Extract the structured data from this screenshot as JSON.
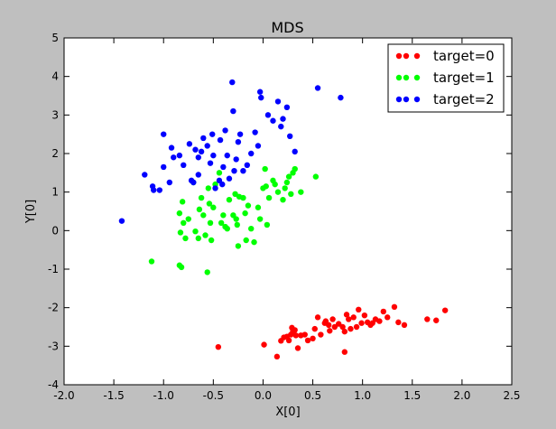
{
  "chart_data": {
    "type": "scatter",
    "title": "MDS",
    "xlabel": "X[0]",
    "ylabel": "Y[0]",
    "xlim": [
      -2.0,
      2.5
    ],
    "ylim": [
      -4,
      5
    ],
    "xticks": [
      "-2.0",
      "-1.5",
      "-1.0",
      "-0.5",
      "0.0",
      "0.5",
      "1.0",
      "1.5",
      "2.0",
      "2.5"
    ],
    "xtick_values": [
      -2.0,
      -1.5,
      -1.0,
      -0.5,
      0.0,
      0.5,
      1.0,
      1.5,
      2.0,
      2.5
    ],
    "yticks": [
      "-4",
      "-3",
      "-2",
      "-1",
      "0",
      "1",
      "2",
      "3",
      "4",
      "5"
    ],
    "ytick_values": [
      -4,
      -3,
      -2,
      -1,
      0,
      1,
      2,
      3,
      4,
      5
    ],
    "grid": false,
    "legend_position": "top-right",
    "series": [
      {
        "name": "target=0",
        "color": "#ff0000",
        "points": [
          [
            -0.45,
            -3.02
          ],
          [
            0.01,
            -2.96
          ],
          [
            0.14,
            -3.27
          ],
          [
            0.18,
            -2.86
          ],
          [
            0.21,
            -2.77
          ],
          [
            0.24,
            -2.75
          ],
          [
            0.26,
            -2.85
          ],
          [
            0.28,
            -2.7
          ],
          [
            0.3,
            -2.62
          ],
          [
            0.29,
            -2.52
          ],
          [
            0.32,
            -2.58
          ],
          [
            0.33,
            -2.72
          ],
          [
            0.35,
            -3.05
          ],
          [
            0.38,
            -2.72
          ],
          [
            0.42,
            -2.7
          ],
          [
            0.45,
            -2.85
          ],
          [
            0.5,
            -2.8
          ],
          [
            0.52,
            -2.55
          ],
          [
            0.55,
            -2.25
          ],
          [
            0.58,
            -2.7
          ],
          [
            0.62,
            -2.4
          ],
          [
            0.63,
            -2.35
          ],
          [
            0.66,
            -2.45
          ],
          [
            0.67,
            -2.6
          ],
          [
            0.7,
            -2.3
          ],
          [
            0.72,
            -2.5
          ],
          [
            0.76,
            -2.42
          ],
          [
            0.8,
            -2.5
          ],
          [
            0.82,
            -2.62
          ],
          [
            0.82,
            -3.15
          ],
          [
            0.84,
            -2.18
          ],
          [
            0.86,
            -2.3
          ],
          [
            0.88,
            -2.55
          ],
          [
            0.91,
            -2.25
          ],
          [
            0.94,
            -2.5
          ],
          [
            0.96,
            -2.05
          ],
          [
            0.99,
            -2.4
          ],
          [
            1.02,
            -2.2
          ],
          [
            1.05,
            -2.38
          ],
          [
            1.08,
            -2.45
          ],
          [
            1.1,
            -2.4
          ],
          [
            1.13,
            -2.3
          ],
          [
            1.17,
            -2.35
          ],
          [
            1.21,
            -2.1
          ],
          [
            1.25,
            -2.25
          ],
          [
            1.32,
            -1.98
          ],
          [
            1.36,
            -2.38
          ],
          [
            1.42,
            -2.45
          ],
          [
            1.65,
            -2.3
          ],
          [
            1.74,
            -2.33
          ],
          [
            1.83,
            -2.07
          ]
        ]
      },
      {
        "name": "target=1",
        "color": "#00ff00",
        "points": [
          [
            -1.12,
            -0.8
          ],
          [
            -0.84,
            -0.9
          ],
          [
            -0.82,
            -0.95
          ],
          [
            -0.84,
            0.45
          ],
          [
            -0.83,
            -0.05
          ],
          [
            -0.81,
            0.75
          ],
          [
            -0.8,
            0.2
          ],
          [
            -0.78,
            -0.2
          ],
          [
            -0.75,
            0.3
          ],
          [
            -0.7,
            1.25
          ],
          [
            -0.68,
            -0.02
          ],
          [
            -0.65,
            -0.2
          ],
          [
            -0.64,
            0.55
          ],
          [
            -0.62,
            0.85
          ],
          [
            -0.6,
            0.4
          ],
          [
            -0.58,
            -0.12
          ],
          [
            -0.56,
            -1.08
          ],
          [
            -0.55,
            1.1
          ],
          [
            -0.54,
            0.7
          ],
          [
            -0.53,
            0.2
          ],
          [
            -0.52,
            -0.25
          ],
          [
            -0.5,
            0.6
          ],
          [
            -0.48,
            1.2
          ],
          [
            -0.44,
            1.5
          ],
          [
            -0.42,
            0.2
          ],
          [
            -0.4,
            0.4
          ],
          [
            -0.38,
            0.1
          ],
          [
            -0.36,
            0.05
          ],
          [
            -0.34,
            0.8
          ],
          [
            -0.3,
            0.4
          ],
          [
            -0.28,
            0.95
          ],
          [
            -0.27,
            0.3
          ],
          [
            -0.26,
            0.15
          ],
          [
            -0.25,
            -0.4
          ],
          [
            -0.24,
            0.88
          ],
          [
            -0.2,
            0.85
          ],
          [
            -0.18,
            0.45
          ],
          [
            -0.17,
            -0.25
          ],
          [
            -0.15,
            0.65
          ],
          [
            -0.12,
            0.05
          ],
          [
            -0.09,
            -0.3
          ],
          [
            -0.05,
            0.6
          ],
          [
            -0.03,
            0.3
          ],
          [
            0.0,
            1.1
          ],
          [
            0.02,
            1.6
          ],
          [
            0.03,
            1.15
          ],
          [
            0.04,
            0.15
          ],
          [
            0.06,
            0.85
          ],
          [
            0.1,
            1.3
          ],
          [
            0.12,
            1.2
          ],
          [
            0.15,
            1.0
          ],
          [
            0.2,
            0.8
          ],
          [
            0.22,
            1.1
          ],
          [
            0.24,
            1.25
          ],
          [
            0.26,
            1.4
          ],
          [
            0.28,
            0.95
          ],
          [
            0.3,
            1.5
          ],
          [
            0.32,
            1.6
          ],
          [
            0.38,
            1.0
          ],
          [
            0.53,
            1.4
          ]
        ]
      },
      {
        "name": "target=2",
        "color": "#0000ff",
        "points": [
          [
            -1.42,
            0.25
          ],
          [
            -1.19,
            1.45
          ],
          [
            -1.11,
            1.15
          ],
          [
            -1.1,
            1.05
          ],
          [
            -1.04,
            1.05
          ],
          [
            -1.0,
            2.5
          ],
          [
            -1.0,
            1.65
          ],
          [
            -0.94,
            1.25
          ],
          [
            -0.92,
            2.15
          ],
          [
            -0.9,
            1.9
          ],
          [
            -0.84,
            1.95
          ],
          [
            -0.8,
            1.7
          ],
          [
            -0.74,
            2.25
          ],
          [
            -0.72,
            1.3
          ],
          [
            -0.7,
            1.25
          ],
          [
            -0.68,
            2.1
          ],
          [
            -0.65,
            1.45
          ],
          [
            -0.65,
            1.9
          ],
          [
            -0.62,
            2.05
          ],
          [
            -0.6,
            2.4
          ],
          [
            -0.56,
            2.2
          ],
          [
            -0.53,
            1.75
          ],
          [
            -0.51,
            2.5
          ],
          [
            -0.5,
            1.95
          ],
          [
            -0.48,
            1.1
          ],
          [
            -0.44,
            1.3
          ],
          [
            -0.43,
            2.35
          ],
          [
            -0.41,
            1.2
          ],
          [
            -0.4,
            1.65
          ],
          [
            -0.38,
            2.6
          ],
          [
            -0.36,
            1.95
          ],
          [
            -0.34,
            1.35
          ],
          [
            -0.31,
            3.85
          ],
          [
            -0.3,
            3.1
          ],
          [
            -0.29,
            1.55
          ],
          [
            -0.27,
            1.85
          ],
          [
            -0.25,
            2.3
          ],
          [
            -0.23,
            2.5
          ],
          [
            -0.2,
            1.55
          ],
          [
            -0.16,
            1.7
          ],
          [
            -0.12,
            2.0
          ],
          [
            -0.08,
            2.55
          ],
          [
            -0.05,
            2.2
          ],
          [
            -0.03,
            3.6
          ],
          [
            -0.02,
            3.45
          ],
          [
            0.05,
            3.0
          ],
          [
            0.1,
            2.85
          ],
          [
            0.15,
            3.35
          ],
          [
            0.18,
            2.7
          ],
          [
            0.2,
            2.9
          ],
          [
            0.24,
            3.2
          ],
          [
            0.27,
            2.45
          ],
          [
            0.32,
            2.05
          ],
          [
            0.55,
            3.7
          ],
          [
            0.78,
            3.45
          ]
        ]
      }
    ]
  }
}
